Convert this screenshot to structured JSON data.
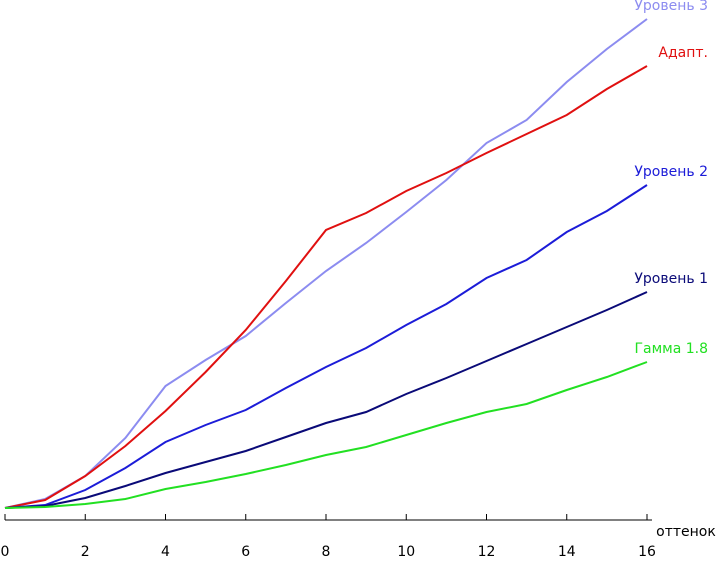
{
  "chart_data": {
    "type": "line",
    "x_label": "оттенок",
    "x": [
      0,
      1,
      2,
      3,
      4,
      5,
      6,
      7,
      8,
      9,
      10,
      11,
      12,
      13,
      14,
      15,
      16
    ],
    "xlim": [
      0,
      16
    ],
    "xticks": [
      0,
      2,
      4,
      6,
      8,
      10,
      12,
      14,
      16
    ],
    "ylim": [
      0,
      100
    ],
    "series": [
      {
        "name": "Уровень 3",
        "color": "#8c8cf0",
        "values": [
          0,
          1.8,
          6.4,
          14,
          24.4,
          29.6,
          34.4,
          41,
          47.4,
          53,
          59.2,
          65.6,
          73,
          77.6,
          85.2,
          91.8,
          97.8
        ]
      },
      {
        "name": "Адапт.",
        "color": "#e01010",
        "values": [
          0,
          1.6,
          6.4,
          12.4,
          19.4,
          27.2,
          35.6,
          45.4,
          55.6,
          59,
          63.4,
          67,
          71,
          74.8,
          78.6,
          83.8,
          88.4
        ]
      },
      {
        "name": "Уровень 2",
        "color": "#1c1cd8",
        "values": [
          0,
          0.6,
          3.6,
          8,
          13.2,
          16.6,
          19.6,
          24,
          28.2,
          32,
          36.6,
          40.8,
          46,
          49.6,
          55.2,
          59.4,
          64.6
        ]
      },
      {
        "name": "Уровень 1",
        "color": "#0a0a78",
        "values": [
          0,
          0.4,
          2,
          4.4,
          7,
          9.2,
          11.4,
          14.2,
          17,
          19.2,
          22.8,
          26,
          29.4,
          32.8,
          36.2,
          39.6,
          43.2
        ]
      },
      {
        "name": "Гамма 1.8",
        "color": "#22e022",
        "values": [
          0,
          0.2,
          0.8,
          1.8,
          3.8,
          5.2,
          6.8,
          8.6,
          10.6,
          12.2,
          14.6,
          17,
          19.2,
          20.8,
          23.6,
          26.2,
          29.2
        ]
      }
    ]
  }
}
